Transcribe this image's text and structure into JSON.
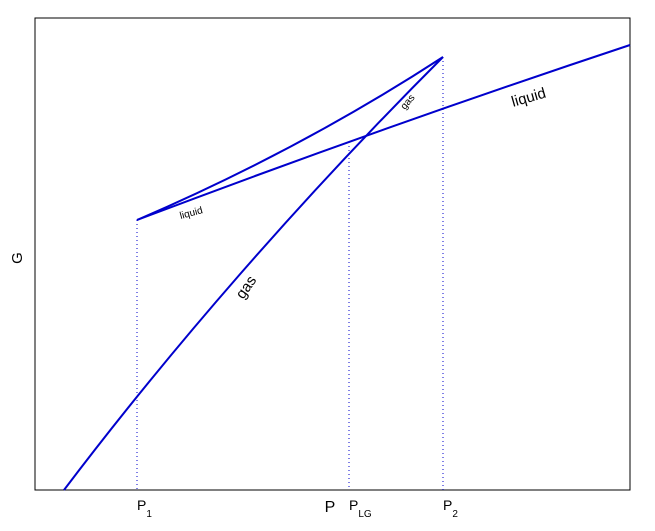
{
  "axes": {
    "y_label": "G",
    "x_label": "P"
  },
  "x_ticks": [
    {
      "base": "P",
      "sub": "1"
    },
    {
      "base": "P",
      "sub": "LG"
    },
    {
      "base": "P",
      "sub": "2"
    }
  ],
  "curve_labels": {
    "liquid_main": "liquid",
    "liquid_branch": "liquid",
    "gas_main": "gas",
    "gas_branch": "gas"
  }
}
